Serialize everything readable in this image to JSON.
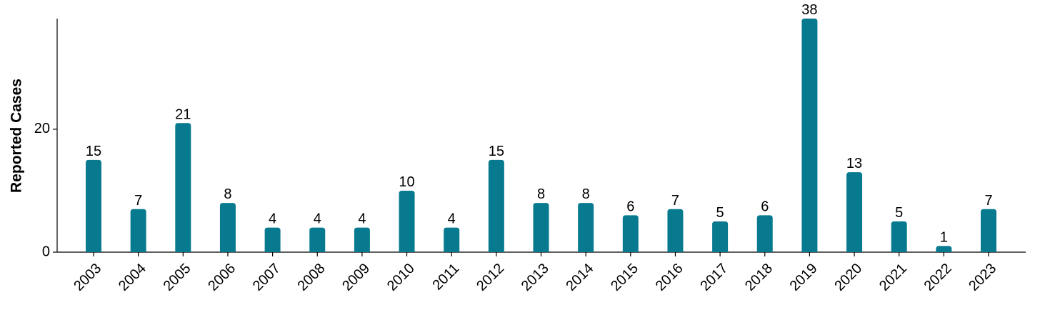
{
  "chart_data": {
    "type": "bar",
    "y_label": "Reported Cases",
    "categories": [
      "2003",
      "2004",
      "2005",
      "2006",
      "2007",
      "2008",
      "2009",
      "2010",
      "2011",
      "2012",
      "2013",
      "2014",
      "2015",
      "2016",
      "2017",
      "2018",
      "2019",
      "2020",
      "2021",
      "2022",
      "2023"
    ],
    "values": [
      15,
      7,
      21,
      8,
      4,
      4,
      4,
      10,
      4,
      15,
      8,
      8,
      6,
      7,
      5,
      6,
      38,
      13,
      5,
      1,
      7
    ],
    "color": "#077a8f",
    "ylim": [
      0,
      38
    ],
    "yticks": [
      0,
      20
    ]
  }
}
